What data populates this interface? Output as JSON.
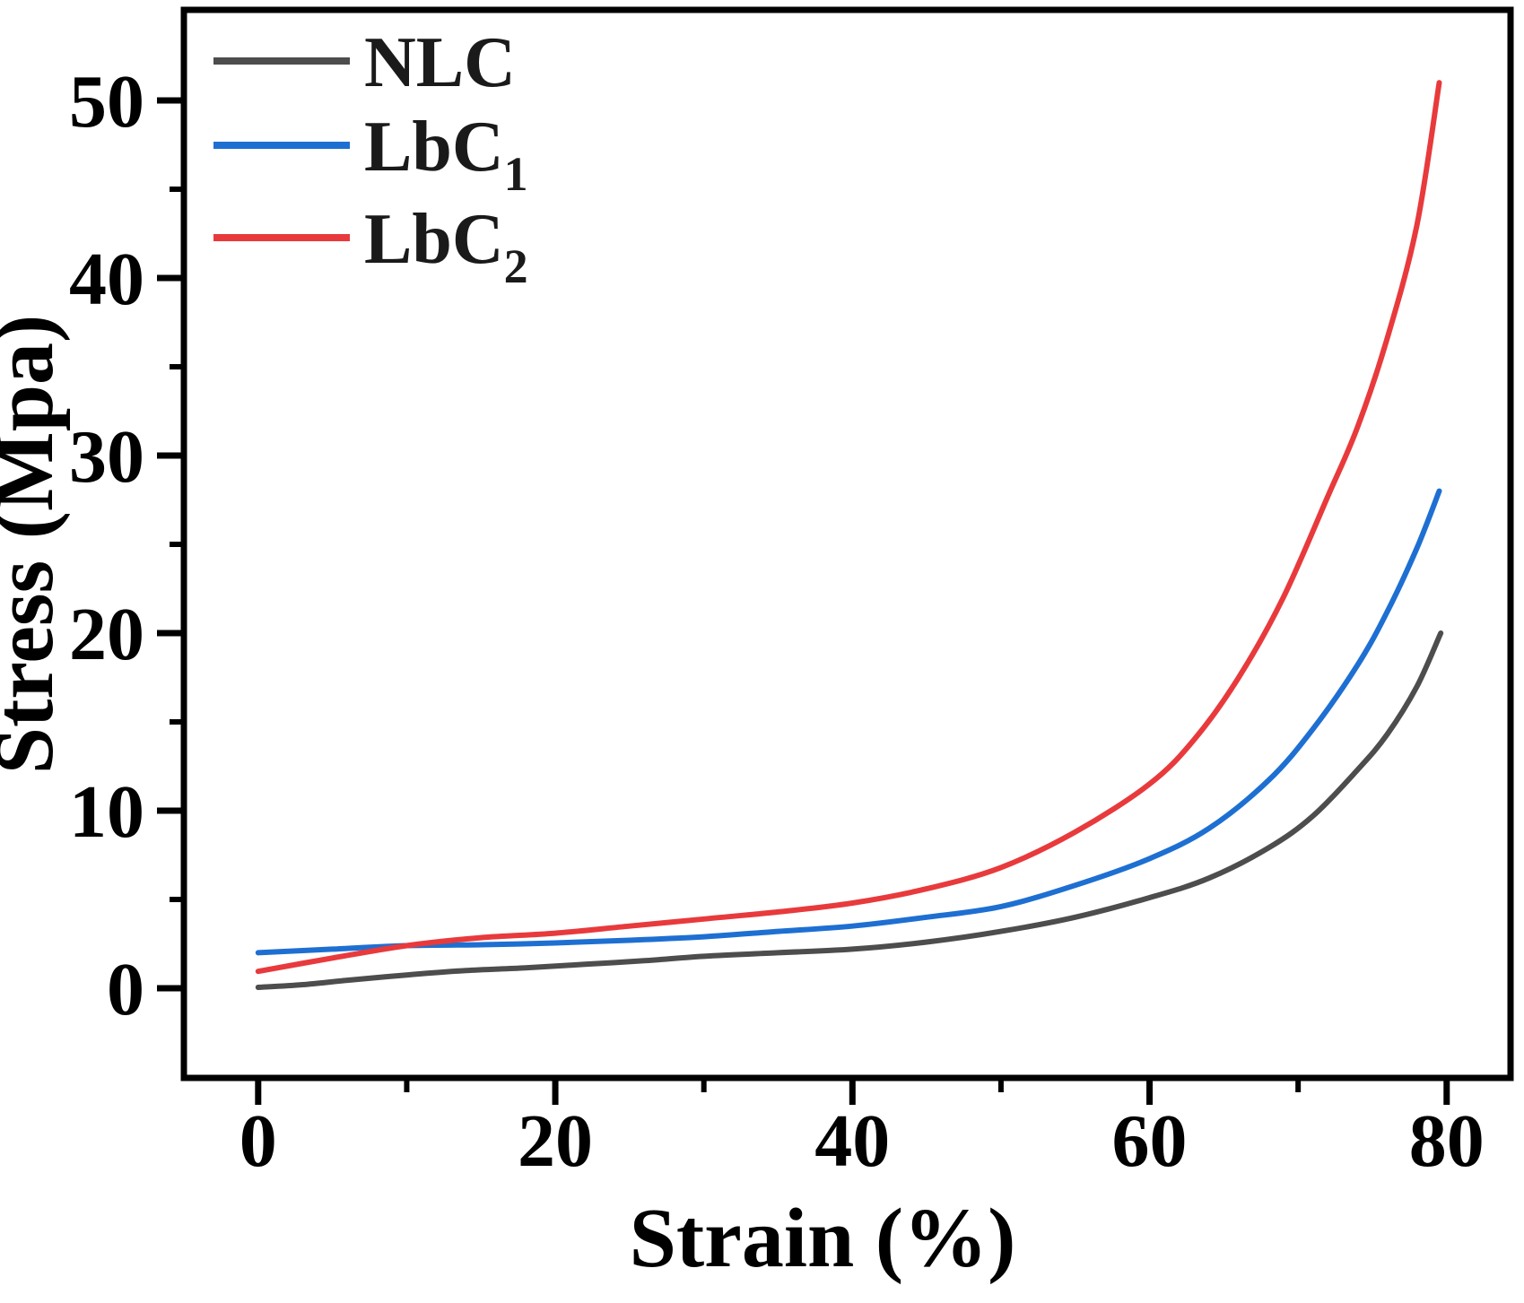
{
  "chart_data": {
    "type": "line",
    "title": "",
    "xlabel": "Strain (%)",
    "ylabel": "Stress (Mpa)",
    "xlim": [
      -5,
      84.3
    ],
    "ylim": [
      -5.05,
      55.1
    ],
    "x_major_ticks": [
      0,
      20,
      40,
      60,
      80
    ],
    "x_minor_ticks": [
      10,
      30,
      50,
      70
    ],
    "y_major_ticks": [
      0,
      10,
      20,
      30,
      40,
      50
    ],
    "y_minor_ticks": [
      5,
      15,
      25,
      35,
      45
    ],
    "grid": false,
    "legend_position": "top-left-inside",
    "frame_color": "#000000",
    "background_color": "#ffffff",
    "series": [
      {
        "name": "NLC",
        "sub": "",
        "color": "#4d4d4d",
        "points": [
          [
            0,
            0.05
          ],
          [
            3,
            0.2
          ],
          [
            6,
            0.45
          ],
          [
            10,
            0.75
          ],
          [
            14,
            1.0
          ],
          [
            18,
            1.15
          ],
          [
            22,
            1.35
          ],
          [
            26,
            1.55
          ],
          [
            30,
            1.8
          ],
          [
            35,
            2.0
          ],
          [
            40,
            2.2
          ],
          [
            45,
            2.6
          ],
          [
            50,
            3.2
          ],
          [
            55,
            4.0
          ],
          [
            60,
            5.1
          ],
          [
            64,
            6.2
          ],
          [
            68,
            7.9
          ],
          [
            71,
            9.7
          ],
          [
            74,
            12.3
          ],
          [
            76,
            14.3
          ],
          [
            78,
            17.0
          ],
          [
            79.6,
            20.0
          ]
        ]
      },
      {
        "name": "LbC",
        "sub": "1",
        "color": "#1e6fd2",
        "points": [
          [
            0,
            2.0
          ],
          [
            5,
            2.2
          ],
          [
            10,
            2.4
          ],
          [
            15,
            2.45
          ],
          [
            20,
            2.55
          ],
          [
            25,
            2.7
          ],
          [
            30,
            2.9
          ],
          [
            35,
            3.2
          ],
          [
            40,
            3.5
          ],
          [
            45,
            4.0
          ],
          [
            50,
            4.6
          ],
          [
            55,
            5.8
          ],
          [
            60,
            7.3
          ],
          [
            64,
            9.0
          ],
          [
            68,
            11.7
          ],
          [
            71,
            14.6
          ],
          [
            74,
            18.2
          ],
          [
            76,
            21.2
          ],
          [
            78,
            24.8
          ],
          [
            79.5,
            28.0
          ]
        ]
      },
      {
        "name": "LbC",
        "sub": "2",
        "color": "#e83a3c",
        "points": [
          [
            0,
            0.95
          ],
          [
            5,
            1.7
          ],
          [
            10,
            2.4
          ],
          [
            15,
            2.85
          ],
          [
            20,
            3.1
          ],
          [
            25,
            3.5
          ],
          [
            30,
            3.9
          ],
          [
            35,
            4.3
          ],
          [
            40,
            4.8
          ],
          [
            45,
            5.6
          ],
          [
            50,
            6.8
          ],
          [
            55,
            8.8
          ],
          [
            60,
            11.5
          ],
          [
            63,
            14.0
          ],
          [
            66,
            17.5
          ],
          [
            69,
            22.0
          ],
          [
            72,
            27.7
          ],
          [
            74,
            31.6
          ],
          [
            76,
            36.6
          ],
          [
            78,
            43.0
          ],
          [
            79.5,
            51.0
          ]
        ]
      }
    ]
  }
}
